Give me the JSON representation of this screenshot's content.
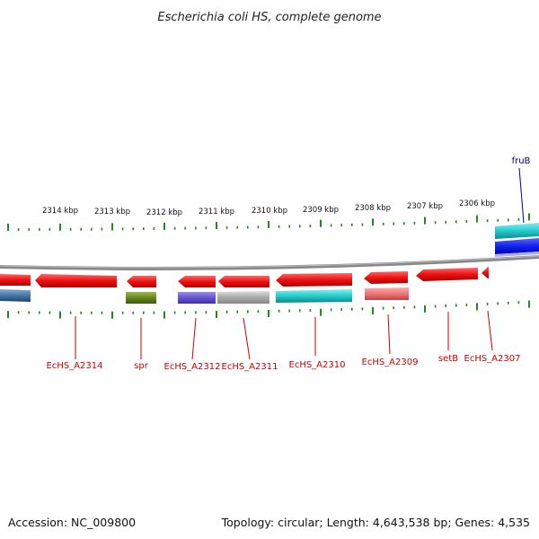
{
  "title": "Escherichia coli HS, complete genome",
  "footer": {
    "accession": "Accession: NC_009800",
    "summary": "Topology: circular; Length: 4,643,538 bp; Genes: 4,535"
  },
  "scale_labels": [
    "2314 kbp",
    "2313 kbp",
    "2312 kbp",
    "2311 kbp",
    "2310 kbp",
    "2309 kbp",
    "2308 kbp",
    "2307 kbp",
    "2306 kbp"
  ],
  "gene_labels": [
    "EcHS_A2314",
    "spr",
    "EcHS_A2312",
    "EcHS_A2311",
    "EcHS_A2310",
    "EcHS_A2309",
    "setB",
    "EcHS_A2307"
  ],
  "top_label": "fruB",
  "colors": {
    "gene_red": "#ee1111",
    "label_red": "#cc0000",
    "tick_green": "#228822",
    "backbone_gray": "#888888",
    "cyan": "#22cccc",
    "blue": "#1122ee",
    "steel_blue": "#4477aa",
    "olive": "#668822",
    "purple": "#6655cc",
    "silver": "#aaaaaa",
    "pink": "#ee7777",
    "fruB_blue": "#000099"
  }
}
